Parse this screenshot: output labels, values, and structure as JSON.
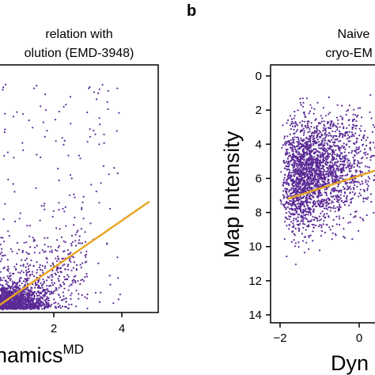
{
  "chart_data": [
    {
      "type": "scatter",
      "title_lines": [
        "relation with",
        "olution (EMD-3948)"
      ],
      "xlabel": "namics",
      "xlabel_superscript": "MD",
      "ylabel": "",
      "x_ticks": [
        "2",
        "4"
      ],
      "y_ticks": [],
      "point_color": "#5b2a96",
      "fit_color": "#e9a526",
      "fit_line": {
        "x": [
          -0.6,
          4.5
        ],
        "y": [
          -0.9,
          0.68
        ]
      },
      "xlim": [
        -0.6,
        4.8
      ],
      "ylim": [
        -1.0,
        2.75
      ],
      "grid": false
    },
    {
      "type": "scatter",
      "panel_label": "b",
      "title_lines": [
        "Naive",
        "cryo-EM"
      ],
      "xlabel": "Dyn",
      "ylabel": "Map Intensity",
      "x_ticks": [
        "−2",
        "0"
      ],
      "y_ticks": [
        "0",
        "2",
        "4",
        "6",
        "8",
        "10",
        "12",
        "14"
      ],
      "y_inverted": true,
      "point_color": "#5b2a96",
      "fit_color": "#e9a526",
      "fit_line": {
        "x": [
          -1.8,
          0.6
        ],
        "y": [
          7.2,
          5.4
        ]
      },
      "xlim": [
        -2.4,
        0.6
      ],
      "ylim": [
        14.6,
        -0.6
      ],
      "grid": false
    }
  ]
}
